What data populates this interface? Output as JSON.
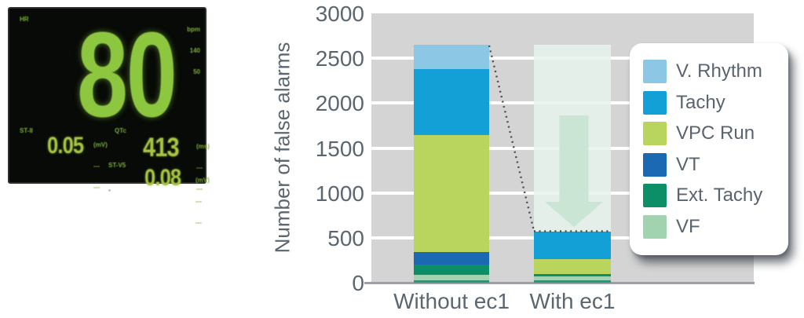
{
  "monitor": {
    "hr_label": "HR",
    "hr_value": "80",
    "limits": {
      "unit": "bpm",
      "high": "140",
      "low": "50"
    },
    "st1_label": "ST-II",
    "st1_value": "0.05",
    "st1_unit": "(mV)",
    "qtc_label": "QTc",
    "qtc_value": "413",
    "qtc_unit": "(ms)",
    "st2_label": "ST-V5",
    "st2_value": "0.08",
    "st2_unit": "(mV)",
    "dashes": "---",
    "green": "#8dc63f"
  },
  "chart_data": {
    "type": "bar",
    "stacked": true,
    "title": "",
    "ylabel": "Number of false alarms",
    "categories": [
      "Without ec1",
      "With ec1"
    ],
    "ylim": [
      0,
      3000
    ],
    "yticks": [
      0,
      500,
      1000,
      1500,
      2000,
      2500,
      3000
    ],
    "grid": true,
    "plot_bg": "#d4d4d4",
    "series": [
      {
        "name": "VF",
        "color": "#a1d3b0",
        "values": [
          90,
          70
        ]
      },
      {
        "name": "Ext. Tachy",
        "color": "#0c8f66",
        "values": [
          110,
          25
        ]
      },
      {
        "name": "VT",
        "color": "#1b69b3",
        "values": [
          140,
          0
        ]
      },
      {
        "name": "VPC Run",
        "color": "#b9d55e",
        "values": [
          1305,
          165
        ]
      },
      {
        "name": "Tachy",
        "color": "#12a0d6",
        "values": [
          730,
          310
        ]
      },
      {
        "name": "V. Rhythm",
        "color": "#8cc7e6",
        "values": [
          275,
          0
        ]
      }
    ],
    "totals": [
      2650,
      570
    ],
    "legend": [
      {
        "label": "V. Rhythm",
        "color": "#8cc7e6"
      },
      {
        "label": "Tachy",
        "color": "#12a0d6"
      },
      {
        "label": "VPC Run",
        "color": "#b9d55e"
      },
      {
        "label": "VT",
        "color": "#1b69b3"
      },
      {
        "label": "Ext. Tachy",
        "color": "#0c8f66"
      },
      {
        "label": "VF",
        "color": "#a1d3b0"
      }
    ],
    "legend_position": "right-overlay",
    "annotation": {
      "type": "reduction",
      "dashed_from_total": 2650,
      "dashed_to_total": 570,
      "arrow": "down",
      "arrow_color": "#c8e4d3"
    }
  }
}
